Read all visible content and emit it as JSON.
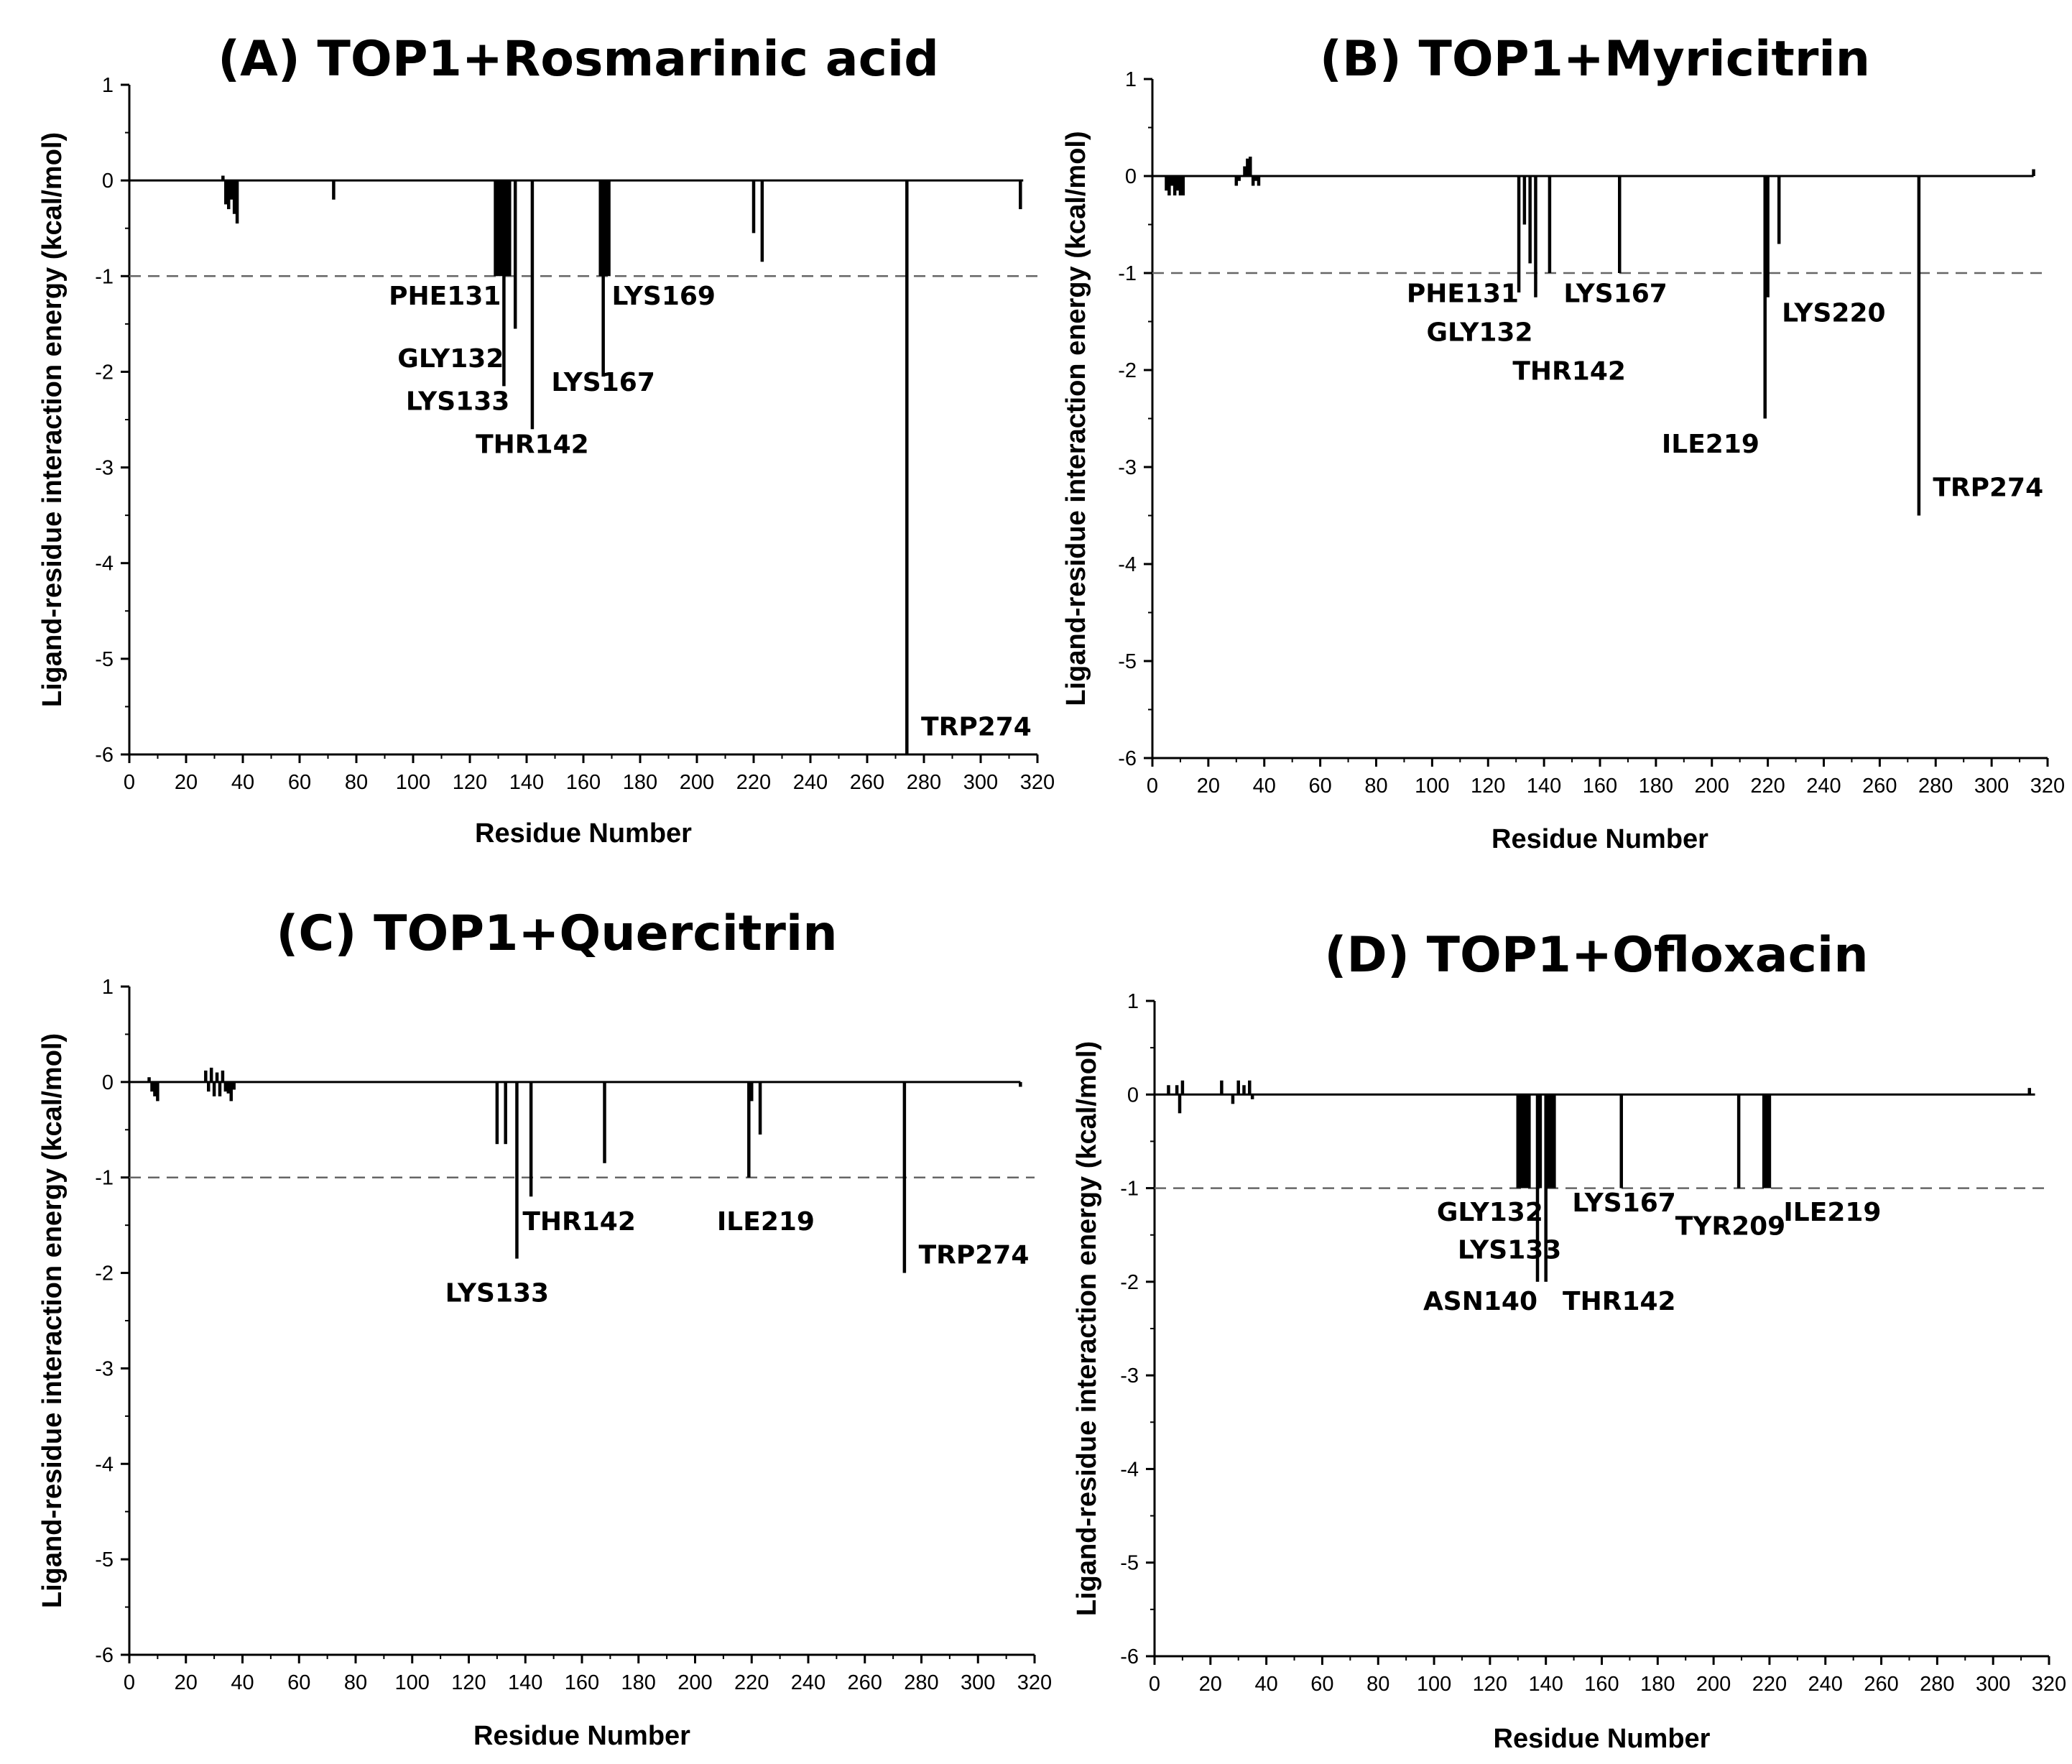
{
  "figure": {
    "colors": {
      "bar": "#000000",
      "axis": "#000000",
      "threshold": "#666666",
      "background": "#ffffff"
    }
  },
  "chart_data": [
    {
      "id": "A",
      "type": "bar",
      "title": "(A) TOP1+Rosmarinic acid",
      "xlabel": "Residue Number",
      "ylabel": "Ligand-residue interaction energy (kcal/mol)",
      "xlim": [
        0,
        320
      ],
      "ylim": [
        -6,
        1
      ],
      "x_ticks": [
        "0",
        "20",
        "40",
        "60",
        "80",
        "100",
        "120",
        "140",
        "160",
        "180",
        "200",
        "220",
        "240",
        "260",
        "280",
        "300",
        "320"
      ],
      "y_ticks": [
        "1",
        "0",
        "-1",
        "-2",
        "-3",
        "-4",
        "-5",
        "-6"
      ],
      "threshold": -1,
      "x": [
        33,
        34,
        35,
        36,
        37,
        38,
        72,
        129,
        130,
        131,
        132,
        133,
        134,
        136,
        142,
        166,
        167,
        168,
        169,
        220,
        223,
        274,
        314
      ],
      "values": [
        0.05,
        -0.25,
        -0.3,
        -0.2,
        -0.35,
        -0.45,
        -0.2,
        -1.0,
        -1.0,
        -1.0,
        -2.15,
        -1.0,
        -1.0,
        -1.55,
        -2.6,
        -1.0,
        -2.05,
        -1.0,
        -1.0,
        -0.55,
        -0.85,
        -6.0,
        -0.3
      ],
      "annotations": [
        {
          "label": "PHE131",
          "x": 131,
          "y": -1.3,
          "anchor": "end"
        },
        {
          "label": "GLY132",
          "x": 132,
          "y": -1.95,
          "anchor": "end"
        },
        {
          "label": "LYS133",
          "x": 134,
          "y": -2.4,
          "anchor": "end"
        },
        {
          "label": "THR142",
          "x": 142,
          "y": -2.85,
          "anchor": "middle"
        },
        {
          "label": "LYS169",
          "x": 170,
          "y": -1.3,
          "anchor": "start"
        },
        {
          "label": "LYS167",
          "x": 167,
          "y": -2.2,
          "anchor": "middle"
        },
        {
          "label": "TRP274",
          "x": 279,
          "y": -5.8,
          "anchor": "start"
        }
      ]
    },
    {
      "id": "B",
      "type": "bar",
      "title": "(B) TOP1+Myricitrin",
      "xlabel": "Residue Number",
      "ylabel": "Ligand-residue interaction energy (kcal/mol)",
      "xlim": [
        0,
        320
      ],
      "ylim": [
        -6,
        1
      ],
      "x_ticks": [
        "0",
        "20",
        "40",
        "60",
        "80",
        "100",
        "120",
        "140",
        "160",
        "180",
        "200",
        "220",
        "240",
        "260",
        "280",
        "300",
        "320"
      ],
      "y_ticks": [
        "1",
        "0",
        "-1",
        "-2",
        "-3",
        "-4",
        "-5",
        "-6"
      ],
      "threshold": -1,
      "x": [
        5,
        6,
        7,
        8,
        9,
        10,
        11,
        30,
        31,
        33,
        34,
        35,
        36,
        37,
        38,
        131,
        133,
        135,
        137,
        142,
        167,
        219,
        220,
        224,
        274,
        315
      ],
      "values": [
        -0.15,
        -0.2,
        -0.1,
        -0.2,
        -0.15,
        -0.2,
        -0.2,
        -0.1,
        -0.05,
        0.1,
        0.18,
        0.2,
        -0.1,
        -0.05,
        -0.1,
        -1.2,
        -0.5,
        -0.9,
        -1.25,
        -1.0,
        -1.0,
        -2.5,
        -1.25,
        -0.7,
        -3.5,
        0.07
      ],
      "annotations": [
        {
          "label": "PHE131",
          "x": 131,
          "y": -1.3,
          "anchor": "end"
        },
        {
          "label": "GLY132",
          "x": 136,
          "y": -1.7,
          "anchor": "end"
        },
        {
          "label": "LYS167",
          "x": 147,
          "y": -1.3,
          "anchor": "start"
        },
        {
          "label": "THR142",
          "x": 149,
          "y": -2.1,
          "anchor": "middle"
        },
        {
          "label": "LYS220",
          "x": 225,
          "y": -1.5,
          "anchor": "start"
        },
        {
          "label": "ILE219",
          "x": 217,
          "y": -2.85,
          "anchor": "end"
        },
        {
          "label": "TRP274",
          "x": 279,
          "y": -3.3,
          "anchor": "start"
        }
      ]
    },
    {
      "id": "C",
      "type": "bar",
      "title": "(C) TOP1+Quercitrin",
      "xlabel": "Residue Number",
      "ylabel": "Ligand-residue interaction energy (kcal/mol)",
      "xlim": [
        0,
        320
      ],
      "ylim": [
        -6,
        1
      ],
      "x_ticks": [
        "0",
        "20",
        "40",
        "60",
        "80",
        "100",
        "120",
        "140",
        "160",
        "180",
        "200",
        "220",
        "240",
        "260",
        "280",
        "300",
        "320"
      ],
      "y_ticks": [
        "1",
        "0",
        "-1",
        "-2",
        "-3",
        "-4",
        "-5",
        "-6"
      ],
      "threshold": -1,
      "x": [
        7,
        8,
        9,
        10,
        27,
        28,
        29,
        30,
        31,
        32,
        33,
        34,
        35,
        36,
        37,
        130,
        133,
        137,
        142,
        168,
        219,
        220,
        223,
        274,
        315
      ],
      "values": [
        0.05,
        -0.1,
        -0.15,
        -0.2,
        0.12,
        -0.1,
        0.15,
        -0.15,
        0.1,
        -0.15,
        0.12,
        -0.1,
        -0.12,
        -0.2,
        -0.08,
        -0.65,
        -0.65,
        -1.85,
        -1.2,
        -0.85,
        -1.0,
        -0.2,
        -0.55,
        -2.0,
        -0.05
      ],
      "annotations": [
        {
          "label": "THR142",
          "x": 139,
          "y": -1.55,
          "anchor": "start"
        },
        {
          "label": "LYS133",
          "x": 130,
          "y": -2.3,
          "anchor": "middle"
        },
        {
          "label": "ILE219",
          "x": 225,
          "y": -1.55,
          "anchor": "middle"
        },
        {
          "label": "TRP274",
          "x": 279,
          "y": -1.9,
          "anchor": "start"
        }
      ]
    },
    {
      "id": "D",
      "type": "bar",
      "title": "(D) TOP1+Ofloxacin",
      "xlabel": "Residue Number",
      "ylabel": "Ligand-residue interaction energy (kcal/mol)",
      "xlim": [
        0,
        320
      ],
      "ylim": [
        -6,
        1
      ],
      "x_ticks": [
        "0",
        "20",
        "40",
        "60",
        "80",
        "100",
        "120",
        "140",
        "160",
        "180",
        "200",
        "220",
        "240",
        "260",
        "280",
        "300",
        "320"
      ],
      "y_ticks": [
        "1",
        "0",
        "-1",
        "-2",
        "-3",
        "-4",
        "-5",
        "-6"
      ],
      "threshold": -1,
      "x": [
        5,
        8,
        9,
        10,
        24,
        28,
        30,
        32,
        34,
        35,
        130,
        131,
        132,
        133,
        134,
        137,
        138,
        140,
        141,
        142,
        143,
        167,
        209,
        218,
        219,
        220,
        313
      ],
      "values": [
        0.1,
        0.1,
        -0.2,
        0.15,
        0.15,
        -0.1,
        0.15,
        0.1,
        0.15,
        -0.05,
        -1.0,
        -1.0,
        -1.0,
        -1.0,
        -1.0,
        -2.0,
        -1.0,
        -2.0,
        -1.0,
        -1.0,
        -1.0,
        -1.0,
        -1.0,
        -1.0,
        -1.0,
        -1.0,
        0.07
      ],
      "annotations": [
        {
          "label": "GLY132",
          "x": 120,
          "y": -1.35,
          "anchor": "middle"
        },
        {
          "label": "LYS133",
          "x": 127,
          "y": -1.75,
          "anchor": "middle"
        },
        {
          "label": "ASN140",
          "x": 137,
          "y": -2.3,
          "anchor": "end"
        },
        {
          "label": "THR142",
          "x": 146,
          "y": -2.3,
          "anchor": "start"
        },
        {
          "label": "LYS167",
          "x": 168,
          "y": -1.25,
          "anchor": "middle"
        },
        {
          "label": "TYR209",
          "x": 206,
          "y": -1.5,
          "anchor": "middle"
        },
        {
          "label": "ILE219",
          "x": 225,
          "y": -1.35,
          "anchor": "start"
        }
      ]
    }
  ]
}
